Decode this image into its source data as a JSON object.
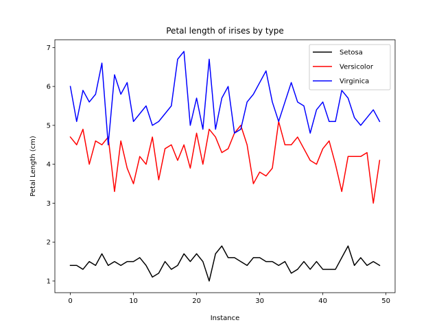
{
  "chart_data": {
    "type": "line",
    "title": "Petal length of irises by type",
    "xlabel": "Instance",
    "ylabel": "Petal Length (cm)",
    "xlim": [
      -2.45,
      51.45
    ],
    "ylim": [
      0.7,
      7.2
    ],
    "xticks": [
      0,
      10,
      20,
      30,
      40,
      50
    ],
    "yticks": [
      1,
      2,
      3,
      4,
      5,
      6,
      7
    ],
    "grid": false,
    "legend_position": "top-right",
    "x": [
      0,
      1,
      2,
      3,
      4,
      5,
      6,
      7,
      8,
      9,
      10,
      11,
      12,
      13,
      14,
      15,
      16,
      17,
      18,
      19,
      20,
      21,
      22,
      23,
      24,
      25,
      26,
      27,
      28,
      29,
      30,
      31,
      32,
      33,
      34,
      35,
      36,
      37,
      38,
      39,
      40,
      41,
      42,
      43,
      44,
      45,
      46,
      47,
      48,
      49
    ],
    "series": [
      {
        "name": "Setosa",
        "color": "#000000",
        "values": [
          1.4,
          1.4,
          1.3,
          1.5,
          1.4,
          1.7,
          1.4,
          1.5,
          1.4,
          1.5,
          1.5,
          1.6,
          1.4,
          1.1,
          1.2,
          1.5,
          1.3,
          1.4,
          1.7,
          1.5,
          1.7,
          1.5,
          1.0,
          1.7,
          1.9,
          1.6,
          1.6,
          1.5,
          1.4,
          1.6,
          1.6,
          1.5,
          1.5,
          1.4,
          1.5,
          1.2,
          1.3,
          1.5,
          1.3,
          1.5,
          1.3,
          1.3,
          1.3,
          1.6,
          1.9,
          1.4,
          1.6,
          1.4,
          1.5,
          1.4
        ]
      },
      {
        "name": "Versicolor",
        "color": "#ff0000",
        "values": [
          4.7,
          4.5,
          4.9,
          4.0,
          4.6,
          4.5,
          4.7,
          3.3,
          4.6,
          3.9,
          3.5,
          4.2,
          4.0,
          4.7,
          3.6,
          4.4,
          4.5,
          4.1,
          4.5,
          3.9,
          4.8,
          4.0,
          4.9,
          4.7,
          4.3,
          4.4,
          4.8,
          5.0,
          4.5,
          3.5,
          3.8,
          3.7,
          3.9,
          5.1,
          4.5,
          4.5,
          4.7,
          4.4,
          4.1,
          4.0,
          4.4,
          4.6,
          4.0,
          3.3,
          4.2,
          4.2,
          4.2,
          4.3,
          3.0,
          4.1
        ]
      },
      {
        "name": "Virginica",
        "color": "#0000ff",
        "values": [
          6.0,
          5.1,
          5.9,
          5.6,
          5.8,
          6.6,
          4.5,
          6.3,
          5.8,
          6.1,
          5.1,
          5.3,
          5.5,
          5.0,
          5.1,
          5.3,
          5.5,
          6.7,
          6.9,
          5.0,
          5.7,
          4.9,
          6.7,
          4.9,
          5.7,
          6.0,
          4.8,
          4.9,
          5.6,
          5.8,
          6.1,
          6.4,
          5.6,
          5.1,
          5.6,
          6.1,
          5.6,
          5.5,
          4.8,
          5.4,
          5.6,
          5.1,
          5.1,
          5.9,
          5.7,
          5.2,
          5.0,
          5.2,
          5.4,
          5.1
        ]
      }
    ]
  }
}
